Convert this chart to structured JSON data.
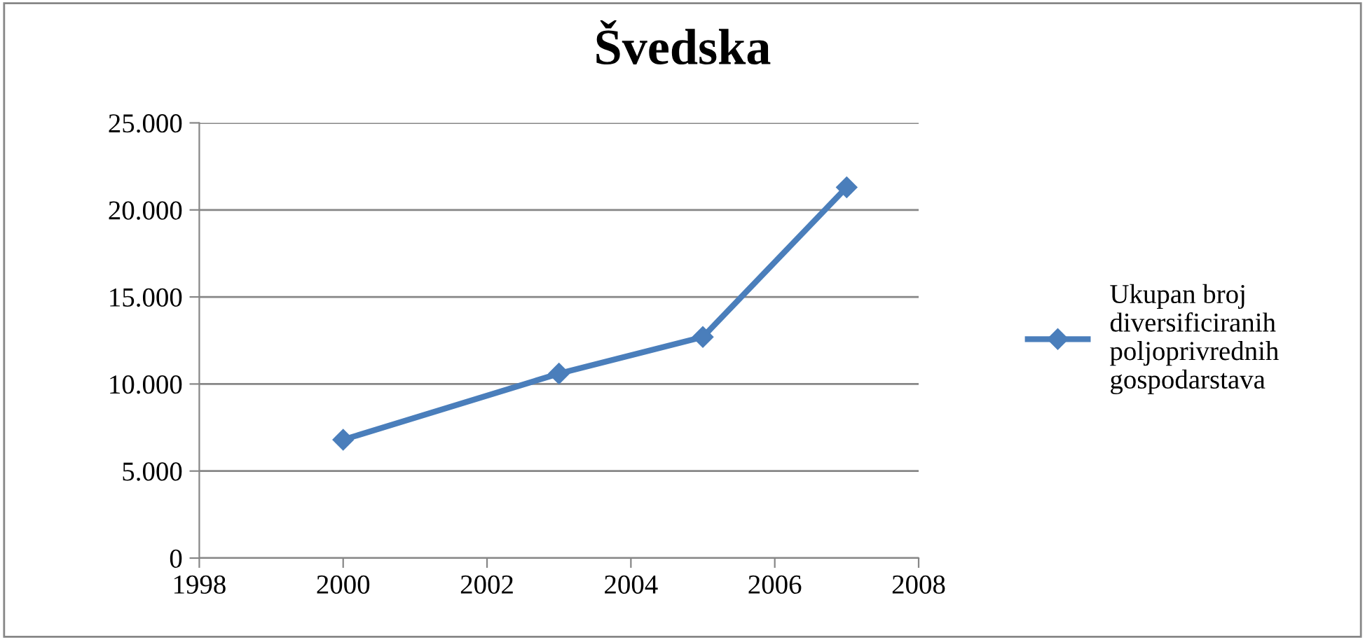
{
  "chart_data": {
    "type": "line",
    "title": "Švedska",
    "x": [
      2000,
      2003,
      2005,
      2007
    ],
    "series": [
      {
        "name": "Ukupan broj diversificiranih poljoprivrednih gospodarstava",
        "color": "#4a7ebb",
        "values": [
          6800,
          10600,
          12700,
          21300
        ]
      }
    ],
    "xlim": [
      1998,
      2008
    ],
    "xticks": [
      1998,
      2000,
      2002,
      2004,
      2006,
      2008
    ],
    "ylim": [
      0,
      25000
    ],
    "yticks": [
      {
        "value": 0,
        "label": "0"
      },
      {
        "value": 5000,
        "label": "5.000"
      },
      {
        "value": 10000,
        "label": "10.000"
      },
      {
        "value": 15000,
        "label": "15.000"
      },
      {
        "value": 20000,
        "label": "20.000"
      },
      {
        "value": 25000,
        "label": "25.000"
      }
    ],
    "grid": "y",
    "legend": "right",
    "marker": "diamond",
    "line_style": "solid"
  }
}
